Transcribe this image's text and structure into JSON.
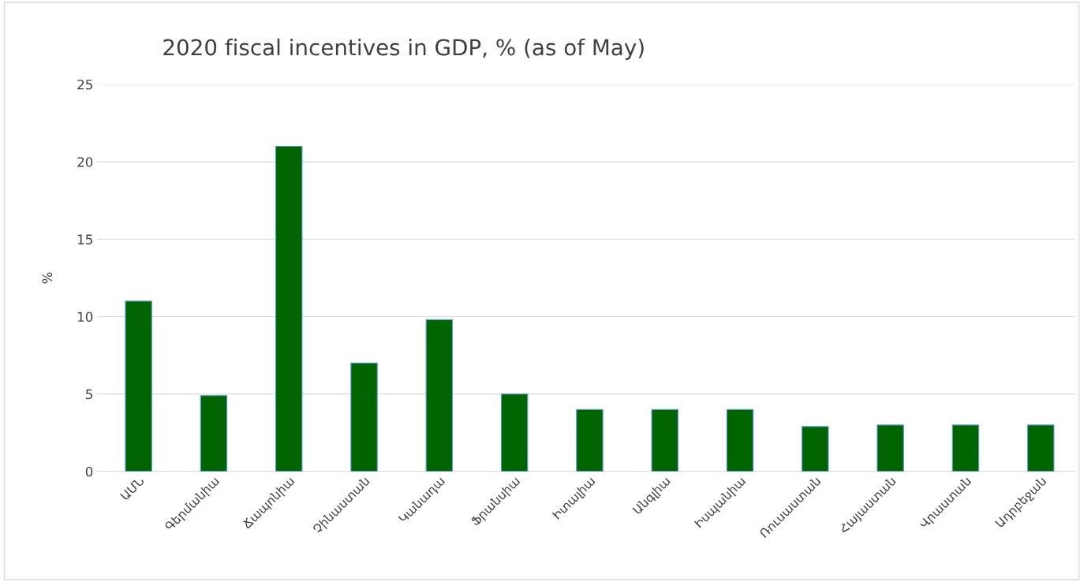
{
  "chart_data": {
    "type": "bar",
    "title": "2020 fiscal incentives in GDP, % (as of May)",
    "ylabel": "%",
    "categories": [
      "ԱՄՆ",
      "Գերմանիա",
      "Ճապոնիա",
      "Չինաստան",
      "Կանադա",
      "Ֆրանսիա",
      "Իտալիա",
      "Անգլիա",
      "Իսպանիա",
      "Ռուսաստան",
      "Հայաստան",
      "Վրաստան",
      "Ադրբեջան"
    ],
    "values": [
      11,
      4.9,
      21,
      7,
      9.8,
      5,
      4,
      4,
      4,
      2.9,
      3,
      3,
      3
    ],
    "color": "#006400",
    "ylim": [
      0,
      25
    ],
    "yticks": [
      0,
      5,
      10,
      15,
      20,
      25
    ],
    "grid": "y"
  }
}
